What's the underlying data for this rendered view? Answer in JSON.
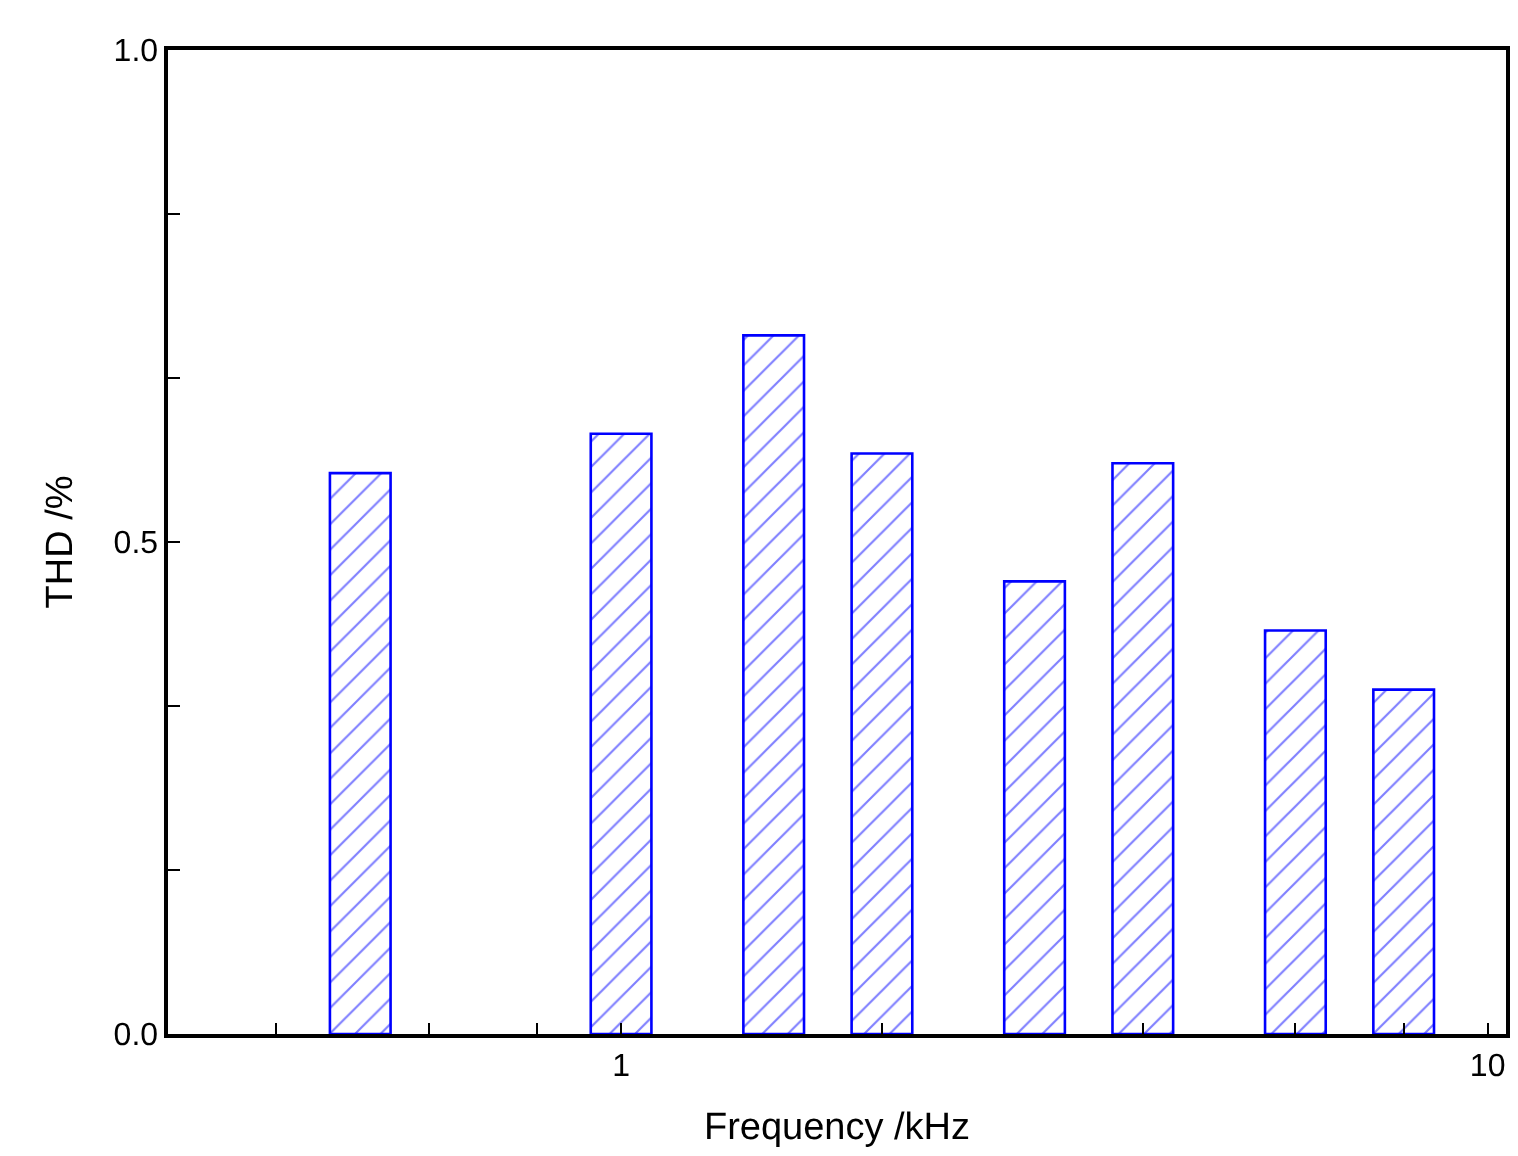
{
  "chart_data": {
    "type": "bar",
    "xlabel": "Frequency /kHz",
    "ylabel": "THD /%",
    "x": [
      0.5,
      1,
      1.5,
      2,
      3,
      4,
      6,
      8
    ],
    "values": [
      0.57,
      0.61,
      0.71,
      0.59,
      0.46,
      0.58,
      0.41,
      0.35
    ],
    "color": "#0000ff",
    "log": "x",
    "xlim": [
      0.3,
      10.5
    ],
    "xticks": [
      {
        "value": 0.4,
        "label": null
      },
      {
        "value": 0.6,
        "label": null
      },
      {
        "value": 0.8,
        "label": null
      },
      1,
      {
        "value": 2,
        "label": null
      },
      {
        "value": 4,
        "label": null
      },
      {
        "value": 6,
        "label": null
      },
      {
        "value": 8,
        "label": null
      },
      10
    ],
    "ylim": [
      0,
      1
    ],
    "yticks": [
      {
        "value": 0,
        "label": "0.0"
      },
      {
        "value": 0.167,
        "label": null
      },
      {
        "value": 0.333,
        "label": null
      },
      {
        "value": 0.5,
        "label": "0.5"
      },
      {
        "value": 0.667,
        "label": null
      },
      {
        "value": 0.833,
        "label": null
      },
      {
        "value": 1,
        "label": "1.0"
      }
    ],
    "legend": false
  }
}
